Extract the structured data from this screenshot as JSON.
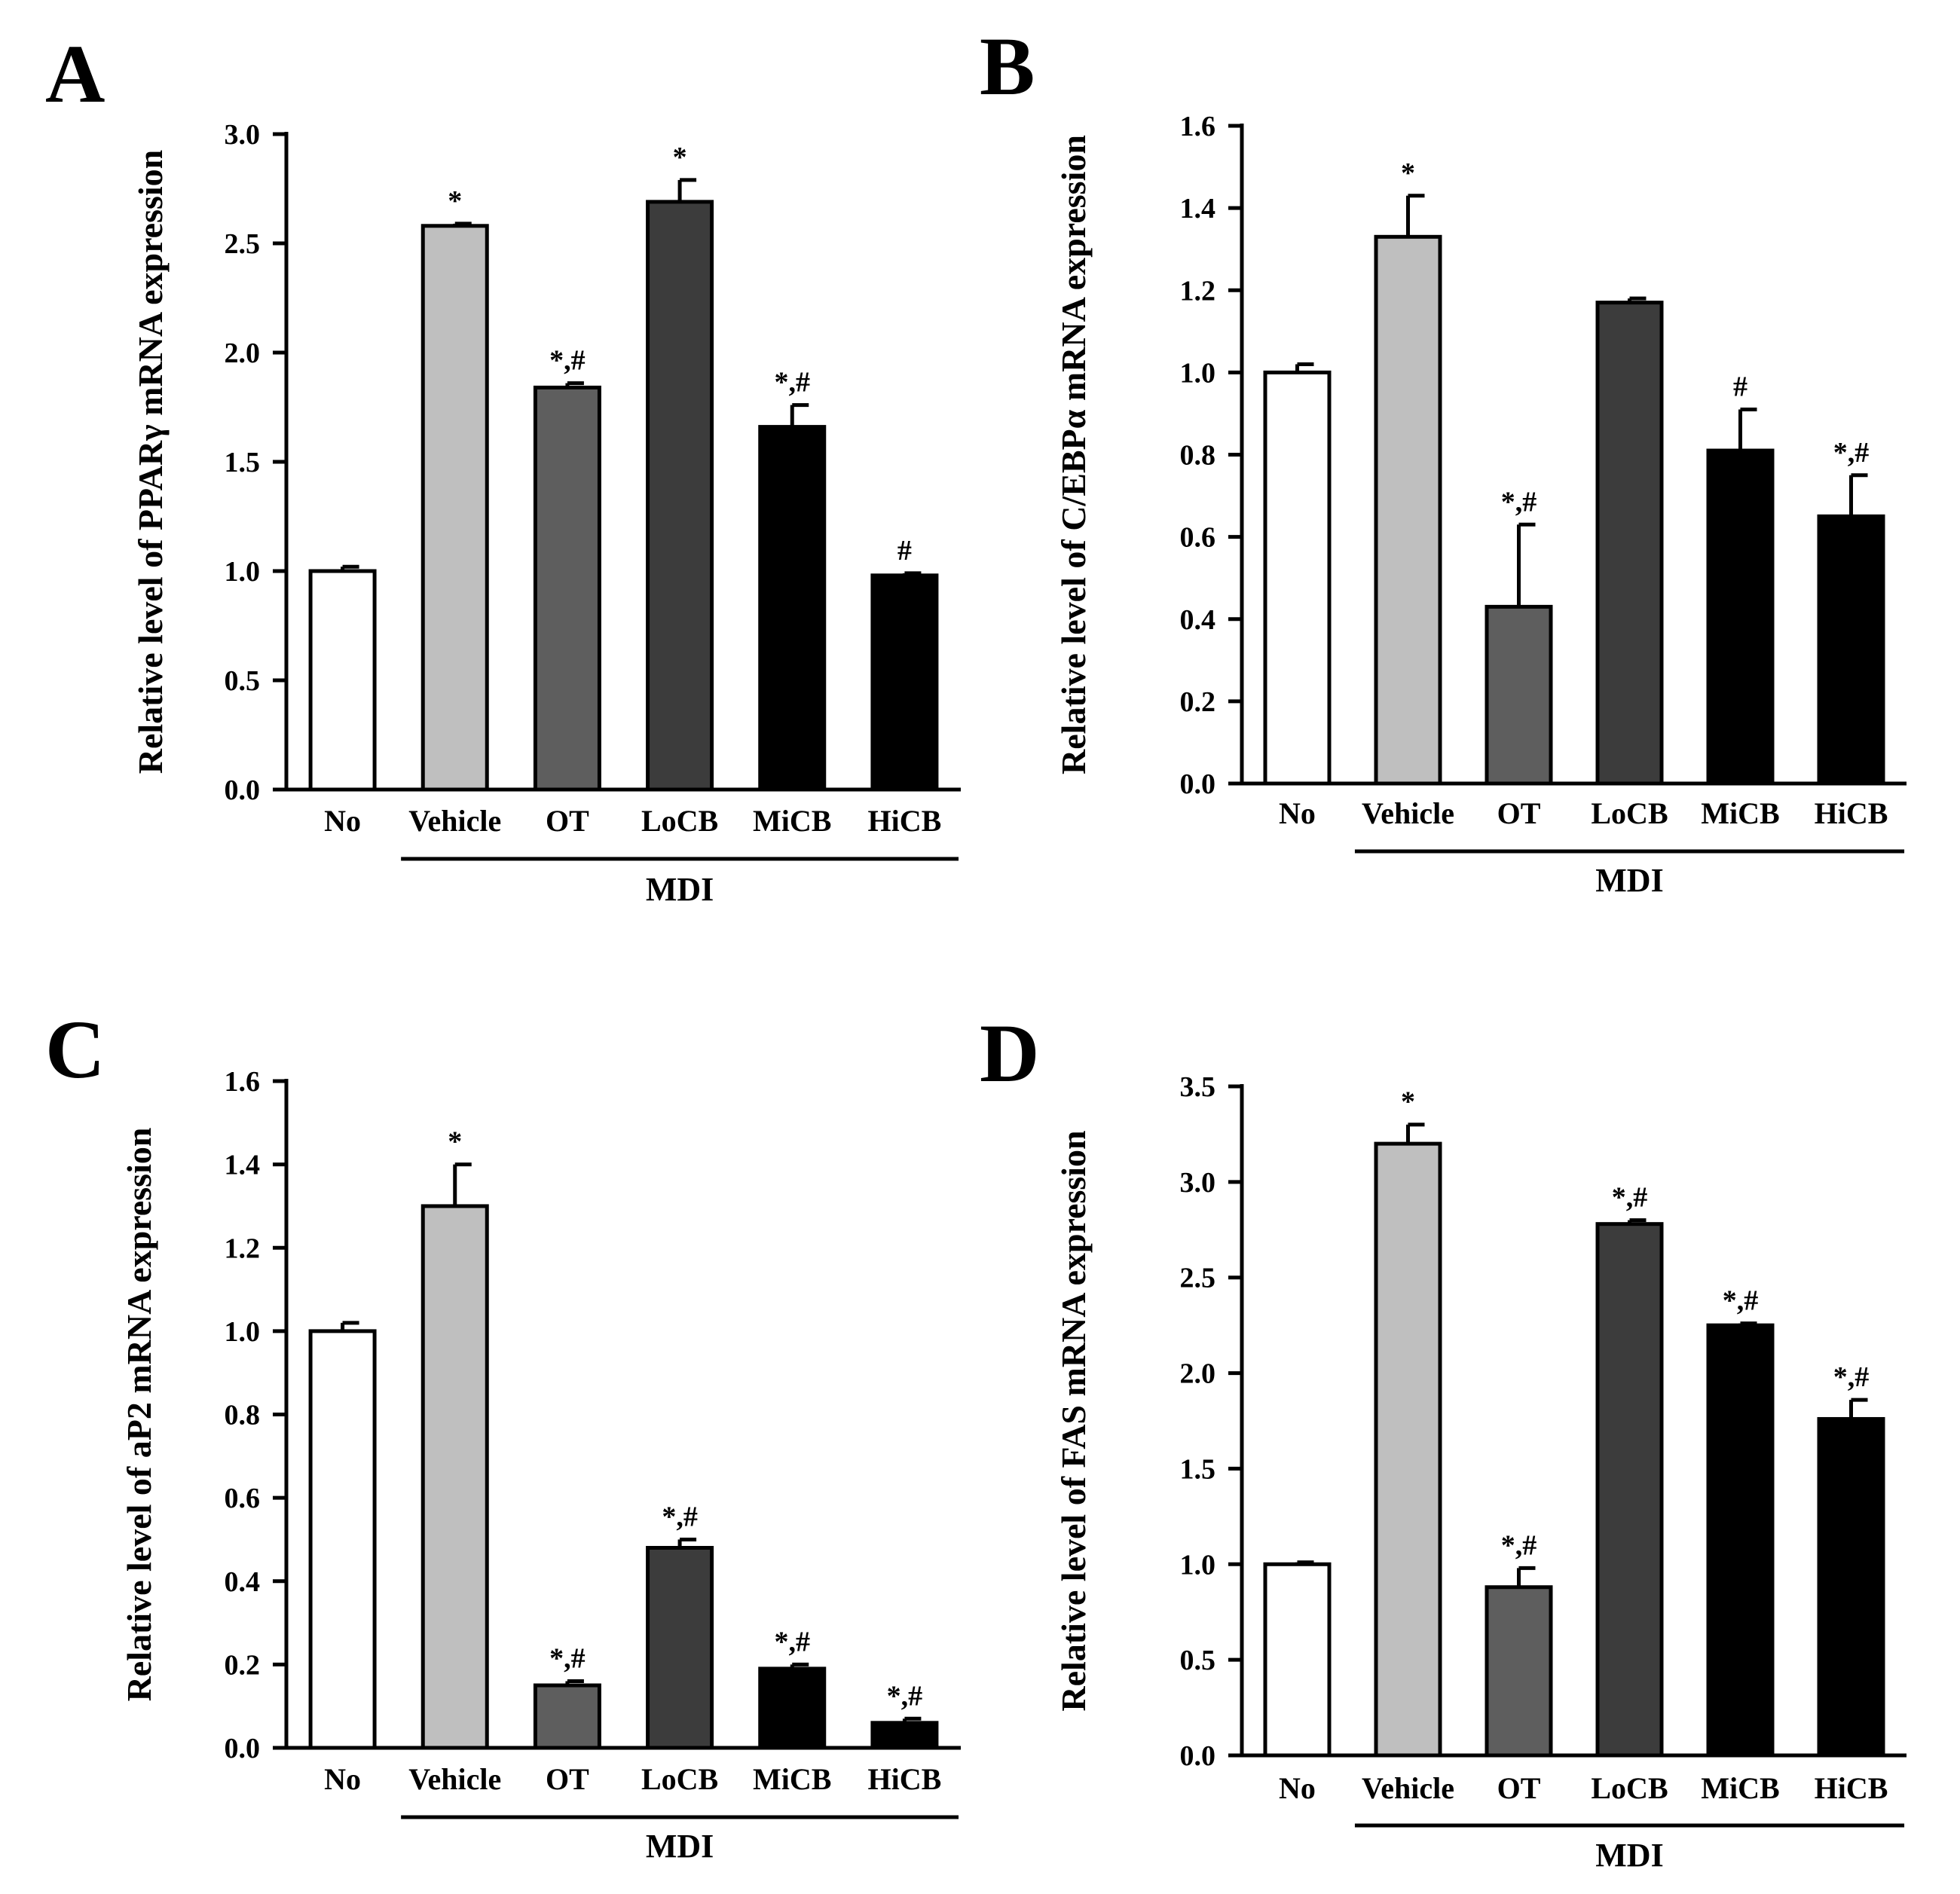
{
  "figure": {
    "colors": {
      "No": "#ffffff",
      "Vehicle": "#bfbfbf",
      "OT": "#5e5e5e",
      "LoCB": "#3c3c3c",
      "MiCB": "#000000",
      "HiCB": "#000000",
      "axis": "#000000"
    }
  },
  "chart_data": [
    {
      "id": "A",
      "panel_letter": "A",
      "type": "bar",
      "ylabel": "Relative level of PPARγ  mRNA expression",
      "categories": [
        "No",
        "Vehicle",
        "OT",
        "LoCB",
        "MiCB",
        "HiCB"
      ],
      "values": [
        1.0,
        2.58,
        1.84,
        2.69,
        1.66,
        0.98
      ],
      "errors": [
        0.02,
        0.01,
        0.02,
        0.1,
        0.1,
        0.01
      ],
      "significance": [
        "",
        "*",
        "*,#",
        "*",
        "*,#",
        "#"
      ],
      "ylim": [
        0,
        3.0
      ],
      "yticks": [
        "0.0",
        "0.5",
        "1.0",
        "1.5",
        "2.0",
        "2.5",
        "3.0"
      ],
      "group_label": "MDI",
      "group_start": "Vehicle",
      "group_end": "HiCB"
    },
    {
      "id": "B",
      "panel_letter": "B",
      "type": "bar",
      "ylabel": "Relative level of C/EBPα  mRNA expression",
      "categories": [
        "No",
        "Vehicle",
        "OT",
        "LoCB",
        "MiCB",
        "HiCB"
      ],
      "values": [
        1.0,
        1.33,
        0.43,
        1.17,
        0.81,
        0.65
      ],
      "errors": [
        0.02,
        0.1,
        0.2,
        0.01,
        0.1,
        0.1
      ],
      "significance": [
        "",
        "*",
        "*,#",
        "",
        "#",
        "*,#"
      ],
      "ylim": [
        0,
        1.6
      ],
      "yticks": [
        "0.0",
        "0.2",
        "0.4",
        "0.6",
        "0.8",
        "1.0",
        "1.2",
        "1.4",
        "1.6"
      ],
      "group_label": "MDI",
      "group_start": "Vehicle",
      "group_end": "HiCB"
    },
    {
      "id": "C",
      "panel_letter": "C",
      "type": "bar",
      "ylabel": "Relative level of aP2 mRNA expression",
      "categories": [
        "No",
        "Vehicle",
        "OT",
        "LoCB",
        "MiCB",
        "HiCB"
      ],
      "values": [
        1.0,
        1.3,
        0.15,
        0.48,
        0.19,
        0.06
      ],
      "errors": [
        0.02,
        0.1,
        0.01,
        0.02,
        0.01,
        0.01
      ],
      "significance": [
        "",
        "*",
        "*,#",
        "*,#",
        "*,#",
        "*,#"
      ],
      "ylim": [
        0,
        1.6
      ],
      "yticks": [
        "0.0",
        "0.2",
        "0.4",
        "0.6",
        "0.8",
        "1.0",
        "1.2",
        "1.4",
        "1.6"
      ],
      "group_label": "MDI",
      "group_start": "Vehicle",
      "group_end": "HiCB"
    },
    {
      "id": "D",
      "panel_letter": "D",
      "type": "bar",
      "ylabel": "Relative level of FAS mRNA expression",
      "categories": [
        "No",
        "Vehicle",
        "OT",
        "LoCB",
        "MiCB",
        "HiCB"
      ],
      "values": [
        1.0,
        3.2,
        0.88,
        2.78,
        2.25,
        1.76
      ],
      "errors": [
        0.01,
        0.1,
        0.1,
        0.02,
        0.01,
        0.1
      ],
      "significance": [
        "",
        "*",
        "*,#",
        "*,#",
        "*,#",
        "*,#"
      ],
      "ylim": [
        0,
        3.5
      ],
      "yticks": [
        "0.0",
        "0.5",
        "1.0",
        "1.5",
        "2.0",
        "2.5",
        "3.0",
        "3.5"
      ],
      "group_label": "MDI",
      "group_start": "Vehicle",
      "group_end": "HiCB"
    }
  ]
}
